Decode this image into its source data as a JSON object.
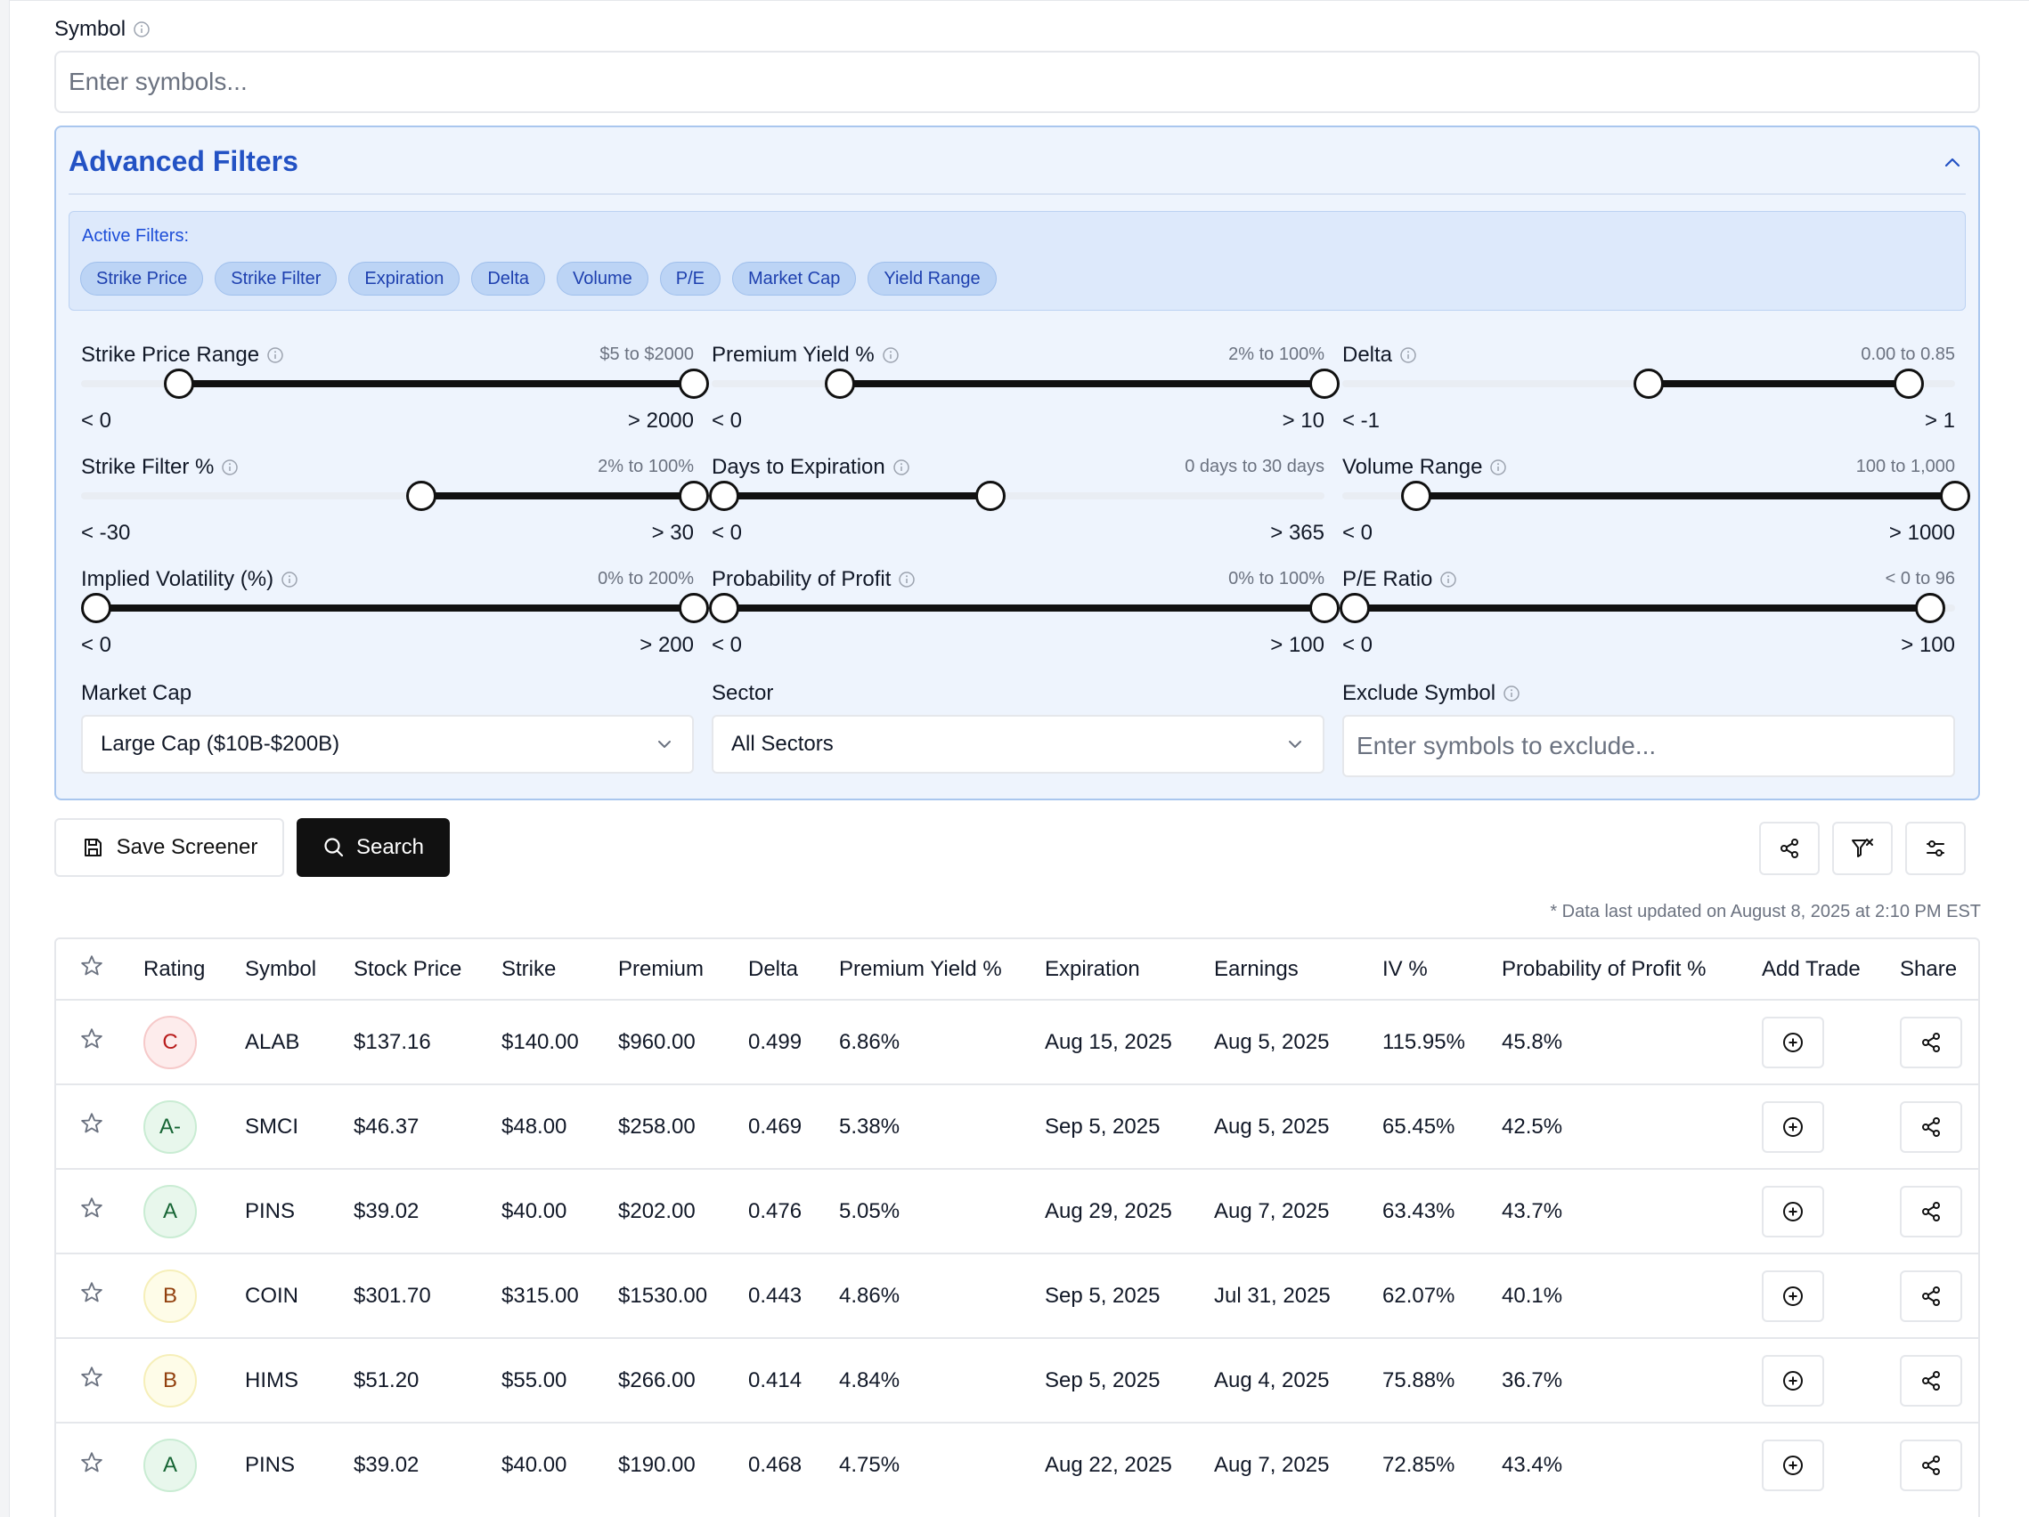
{
  "symbol": {
    "label": "Symbol",
    "placeholder": "Enter symbols..."
  },
  "advanced": {
    "title": "Advanced Filters",
    "active_filters_label": "Active Filters:",
    "chips": [
      "Strike Price",
      "Strike Filter",
      "Expiration",
      "Delta",
      "Volume",
      "P/E",
      "Market Cap",
      "Yield Range"
    ],
    "sliders": [
      {
        "label": "Strike Price Range",
        "range": "$5 to $2000",
        "min": "< 0",
        "max": "> 2000",
        "low_frac": 0.16,
        "high_frac": 1.0
      },
      {
        "label": "Premium Yield %",
        "range": "2% to 100%",
        "min": "< 0",
        "max": "> 10",
        "low_frac": 0.21,
        "high_frac": 1.0
      },
      {
        "label": "Delta",
        "range": "0.00 to 0.85",
        "min": "< -1",
        "max": "> 1",
        "low_frac": 0.5,
        "high_frac": 0.925
      },
      {
        "label": "Strike Filter %",
        "range": "2% to 100%",
        "min": "< -30",
        "max": "> 30",
        "low_frac": 0.555,
        "high_frac": 1.0
      },
      {
        "label": "Days to Expiration",
        "range": "0 days to 30 days",
        "min": "< 0",
        "max": "> 365",
        "low_frac": 0.02,
        "high_frac": 0.455
      },
      {
        "label": "Volume Range",
        "range": "100 to 1,000",
        "min": "< 0",
        "max": "> 1000",
        "low_frac": 0.12,
        "high_frac": 1.0
      },
      {
        "label": "Implied Volatility (%)",
        "range": "0% to 200%",
        "min": "< 0",
        "max": "> 200",
        "low_frac": 0.025,
        "high_frac": 1.0
      },
      {
        "label": "Probability of Profit",
        "range": "0% to 100%",
        "min": "< 0",
        "max": "> 100",
        "low_frac": 0.02,
        "high_frac": 1.0
      },
      {
        "label": "P/E Ratio",
        "range": "< 0 to 96",
        "min": "< 0",
        "max": "> 100",
        "low_frac": 0.02,
        "high_frac": 0.96
      }
    ],
    "market_cap": {
      "label": "Market Cap",
      "value": "Large Cap ($10B-$200B)"
    },
    "sector": {
      "label": "Sector",
      "value": "All Sectors"
    },
    "exclude": {
      "label": "Exclude Symbol",
      "placeholder": "Enter symbols to exclude..."
    }
  },
  "actions": {
    "save_label": "Save Screener",
    "search_label": "Search"
  },
  "updated_text": "* Data last updated on August 8, 2025 at 2:10 PM EST",
  "table": {
    "headers": [
      "Rating",
      "Symbol",
      "Stock Price",
      "Strike",
      "Premium",
      "Delta",
      "Premium Yield %",
      "Expiration",
      "Earnings",
      "IV %",
      "Probability of Profit %",
      "Add Trade",
      "Share"
    ],
    "rows": [
      {
        "rating": "C",
        "symbol": "ALAB",
        "stock_price": "$137.16",
        "strike": "$140.00",
        "premium": "$960.00",
        "delta": "0.499",
        "yield": "6.86%",
        "expiration": "Aug 15, 2025",
        "earnings": "Aug 5, 2025",
        "iv": "115.95%",
        "pop": "45.8%"
      },
      {
        "rating": "A-",
        "symbol": "SMCI",
        "stock_price": "$46.37",
        "strike": "$48.00",
        "premium": "$258.00",
        "delta": "0.469",
        "yield": "5.38%",
        "expiration": "Sep 5, 2025",
        "earnings": "Aug 5, 2025",
        "iv": "65.45%",
        "pop": "42.5%"
      },
      {
        "rating": "A",
        "symbol": "PINS",
        "stock_price": "$39.02",
        "strike": "$40.00",
        "premium": "$202.00",
        "delta": "0.476",
        "yield": "5.05%",
        "expiration": "Aug 29, 2025",
        "earnings": "Aug 7, 2025",
        "iv": "63.43%",
        "pop": "43.7%"
      },
      {
        "rating": "B",
        "symbol": "COIN",
        "stock_price": "$301.70",
        "strike": "$315.00",
        "premium": "$1530.00",
        "delta": "0.443",
        "yield": "4.86%",
        "expiration": "Sep 5, 2025",
        "earnings": "Jul 31, 2025",
        "iv": "62.07%",
        "pop": "40.1%"
      },
      {
        "rating": "B",
        "symbol": "HIMS",
        "stock_price": "$51.20",
        "strike": "$55.00",
        "premium": "$266.00",
        "delta": "0.414",
        "yield": "4.84%",
        "expiration": "Sep 5, 2025",
        "earnings": "Aug 4, 2025",
        "iv": "75.88%",
        "pop": "36.7%"
      },
      {
        "rating": "A",
        "symbol": "PINS",
        "stock_price": "$39.02",
        "strike": "$40.00",
        "premium": "$190.00",
        "delta": "0.468",
        "yield": "4.75%",
        "expiration": "Aug 22, 2025",
        "earnings": "Aug 7, 2025",
        "iv": "72.85%",
        "pop": "43.4%"
      }
    ]
  },
  "rating_colors": {
    "A": {
      "bg": "#e8f7ec",
      "border": "#c9ecd3",
      "fg": "#166534"
    },
    "B": {
      "bg": "#fefce8",
      "border": "#f6efb9",
      "fg": "#92400e"
    },
    "C": {
      "bg": "#fdecec",
      "border": "#f6c9c9",
      "fg": "#b91c1c"
    }
  }
}
